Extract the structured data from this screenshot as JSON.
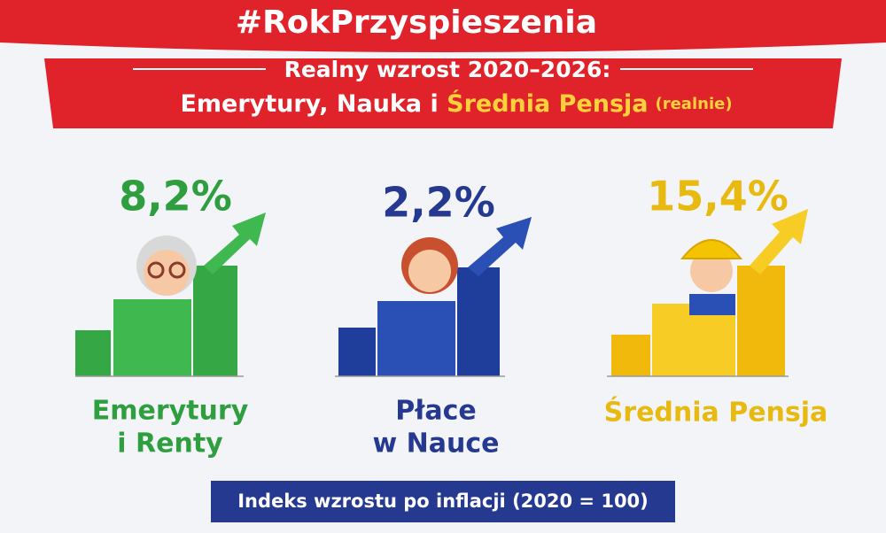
{
  "header": {
    "hashtag": "#RokPrzyspieszenia",
    "title_line1": "Realny wzrost 2020–2026:",
    "title_line2_part1": "Emerytury, Nauka i ",
    "title_line2_highlight": "Średnia Pensja",
    "title_line2_note": "(realnie)"
  },
  "panels": [
    {
      "value": "8,2%",
      "label_line1": "Emerytury",
      "label_line2": "i Renty"
    },
    {
      "value": "2,2%",
      "label_line1": "Płace",
      "label_line2": "w Nauce"
    },
    {
      "value": "15,4%",
      "label_line1": "Średnia Pensja"
    }
  ],
  "footer": {
    "note": "Indeks wzrostu po inflacji (2020 = 100)"
  }
}
